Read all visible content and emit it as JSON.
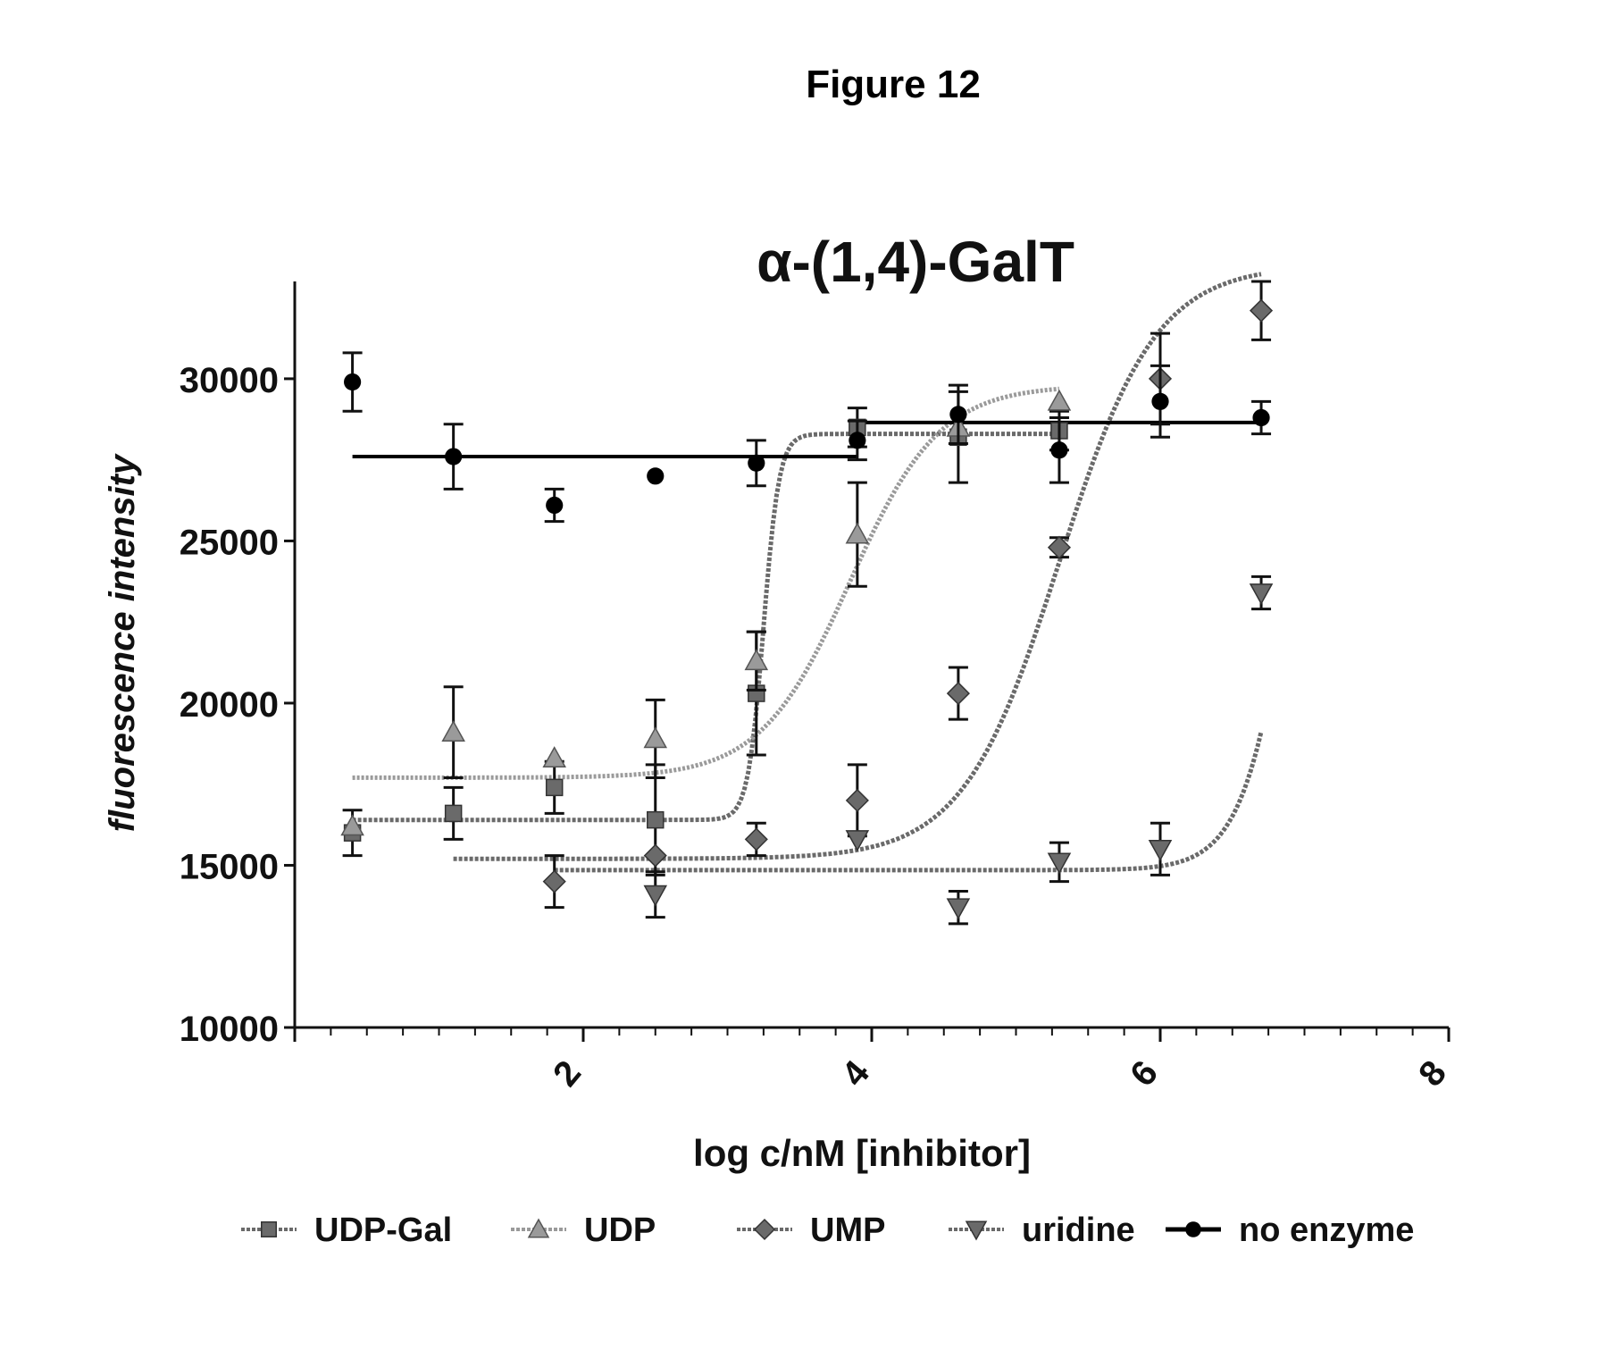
{
  "figure_label": "Figure 12",
  "chart_data": {
    "type": "scatter",
    "title": "α-(1,4)-GalT",
    "xlabel": "log c/nM [inhibitor]",
    "ylabel": "fluorescence intensity",
    "xlim": [
      0,
      8
    ],
    "ylim": [
      10000,
      33000
    ],
    "x_ticks": [
      {
        "value": 2,
        "label": "2"
      },
      {
        "value": 4,
        "label": "4"
      },
      {
        "value": 6,
        "label": "6"
      },
      {
        "value": 8,
        "label": "8"
      }
    ],
    "y_ticks": [
      {
        "value": 10000,
        "label": "10000"
      },
      {
        "value": 15000,
        "label": "15000"
      },
      {
        "value": 20000,
        "label": "20000"
      },
      {
        "value": 25000,
        "label": "25000"
      },
      {
        "value": 30000,
        "label": "30000"
      }
    ],
    "grid": false,
    "legend": {
      "position": "bottom"
    },
    "series": [
      {
        "name": "UDP-Gal",
        "marker": "square",
        "color": "#6a6a6a",
        "points": [
          {
            "x": 0.4,
            "y": 16000,
            "err": 700
          },
          {
            "x": 1.1,
            "y": 16600,
            "err": 800
          },
          {
            "x": 1.8,
            "y": 17400,
            "err": 800
          },
          {
            "x": 2.5,
            "y": 16400,
            "err": 1700
          },
          {
            "x": 3.2,
            "y": 20300,
            "err": 1900
          },
          {
            "x": 3.9,
            "y": 28500,
            "err": 600
          },
          {
            "x": 4.6,
            "y": 28200,
            "err": 1400
          },
          {
            "x": 5.3,
            "y": 28400,
            "err": 600
          }
        ],
        "fit": {
          "bottom": 16400,
          "top": 28300,
          "x50": 3.25,
          "slope": 8.0,
          "x_from": 0.4,
          "x_to": 5.3
        }
      },
      {
        "name": "UDP",
        "marker": "triangle-up",
        "color": "#9a9a9a",
        "points": [
          {
            "x": 0.4,
            "y": 16200,
            "err": 0
          },
          {
            "x": 1.1,
            "y": 19100,
            "err": 1400
          },
          {
            "x": 1.8,
            "y": 18300,
            "err": 0
          },
          {
            "x": 2.5,
            "y": 18900,
            "err": 1200
          },
          {
            "x": 3.2,
            "y": 21300,
            "err": 900
          },
          {
            "x": 3.9,
            "y": 25200,
            "err": 1600
          },
          {
            "x": 4.6,
            "y": 28500,
            "err": 0
          },
          {
            "x": 5.3,
            "y": 29300,
            "err": 0
          }
        ],
        "fit": {
          "bottom": 17700,
          "top": 29800,
          "x50": 3.85,
          "slope": 1.4,
          "x_from": 0.4,
          "x_to": 5.3
        }
      },
      {
        "name": "UMP",
        "marker": "diamond",
        "color": "#6a6a6a",
        "points": [
          {
            "x": 1.8,
            "y": 14500,
            "err": 800
          },
          {
            "x": 2.5,
            "y": 15300,
            "err": 0
          },
          {
            "x": 3.2,
            "y": 15800,
            "err": 500
          },
          {
            "x": 3.9,
            "y": 17000,
            "err": 1100
          },
          {
            "x": 4.6,
            "y": 20300,
            "err": 800
          },
          {
            "x": 5.3,
            "y": 24800,
            "err": 300
          },
          {
            "x": 6.0,
            "y": 30000,
            "err": 1400
          },
          {
            "x": 6.7,
            "y": 32100,
            "err": 900
          }
        ],
        "fit": {
          "bottom": 15200,
          "top": 33500,
          "x50": 5.3,
          "slope": 1.3,
          "x_from": 1.1,
          "x_to": 6.7
        }
      },
      {
        "name": "uridine",
        "marker": "triangle-down",
        "color": "#6a6a6a",
        "points": [
          {
            "x": 2.5,
            "y": 14100,
            "err": 700
          },
          {
            "x": 3.9,
            "y": 15800,
            "err": 0
          },
          {
            "x": 4.6,
            "y": 13700,
            "err": 500
          },
          {
            "x": 5.3,
            "y": 15100,
            "err": 600
          },
          {
            "x": 6.0,
            "y": 15500,
            "err": 800
          },
          {
            "x": 6.7,
            "y": 23400,
            "err": 500
          }
        ],
        "fit": {
          "bottom": 14850,
          "top": 40000,
          "x50": 7.0,
          "slope": 2.3,
          "x_from": 1.8,
          "x_to": 6.7
        }
      },
      {
        "name": "no enzyme",
        "marker": "circle",
        "color": "#000000",
        "points": [
          {
            "x": 0.4,
            "y": 29900,
            "err": 900
          },
          {
            "x": 1.1,
            "y": 27600,
            "err": 1000
          },
          {
            "x": 1.8,
            "y": 26100,
            "err": 500
          },
          {
            "x": 2.5,
            "y": 27000,
            "err": 0
          },
          {
            "x": 3.2,
            "y": 27400,
            "err": 700
          },
          {
            "x": 3.9,
            "y": 28100,
            "err": 600
          },
          {
            "x": 4.6,
            "y": 28900,
            "err": 900
          },
          {
            "x": 5.3,
            "y": 27800,
            "err": 1000
          },
          {
            "x": 6.0,
            "y": 29300,
            "err": 1100
          },
          {
            "x": 6.7,
            "y": 28800,
            "err": 500
          }
        ],
        "fit_segments": [
          {
            "y": 27600,
            "x_from": 0.4,
            "x_to": 3.9
          },
          {
            "y": 28650,
            "x_from": 3.9,
            "x_to": 6.7
          }
        ]
      }
    ]
  }
}
